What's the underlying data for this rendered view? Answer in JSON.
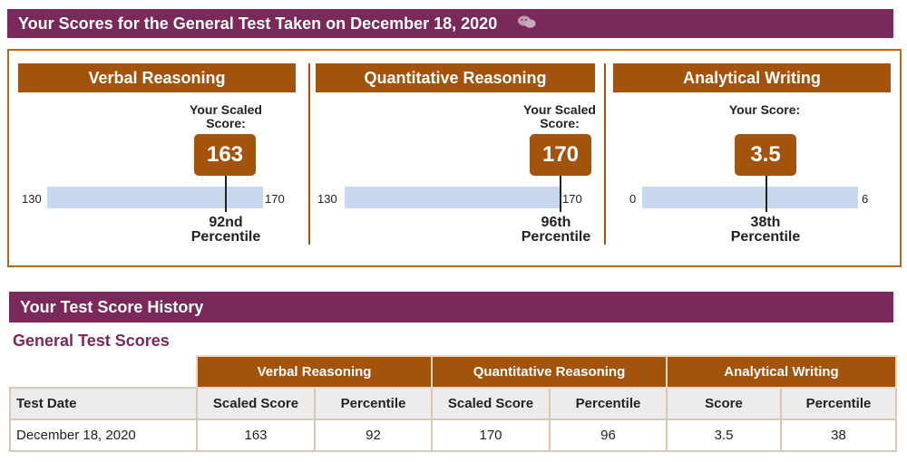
{
  "header": {
    "title": "Your Scores for the General Test Taken on December 18, 2020",
    "wechat_icon": "wechat-icon"
  },
  "panels": [
    {
      "title": "Verbal Reasoning",
      "scaled_label": "Your Scaled Score:",
      "score": "163",
      "scale_min": "130",
      "scale_max": "170",
      "percentile_line1": "92nd",
      "percentile_line2": "Percentile",
      "fraction": 0.825
    },
    {
      "title": "Quantitative Reasoning",
      "scaled_label": "Your Scaled Score:",
      "score": "170",
      "scale_min": "130",
      "scale_max": "170",
      "percentile_line1": "96th",
      "percentile_line2": "Percentile",
      "fraction": 1.0
    },
    {
      "title": "Analytical Writing",
      "scaled_label": "Your Score:",
      "score": "3.5",
      "scale_min": "0",
      "scale_max": "6",
      "percentile_line1": "38th",
      "percentile_line2": "Percentile",
      "fraction": 0.583
    }
  ],
  "history": {
    "title": "Your Test Score History",
    "subtitle": "General Test Scores",
    "group_headers": [
      "Verbal Reasoning",
      "Quantitative Reasoning",
      "Analytical Writing"
    ],
    "column_headers": [
      "Test Date",
      "Scaled Score",
      "Percentile",
      "Scaled Score",
      "Percentile",
      "Score",
      "Percentile"
    ],
    "rows": [
      [
        "December 18, 2020",
        "163",
        "92",
        "170",
        "96",
        "3.5",
        "38"
      ]
    ]
  },
  "colors": {
    "banner": "#7a2a5a",
    "accent": "#a4530c",
    "scale_bar": "#c8d8ef",
    "subheader_bg": "#ececec"
  }
}
